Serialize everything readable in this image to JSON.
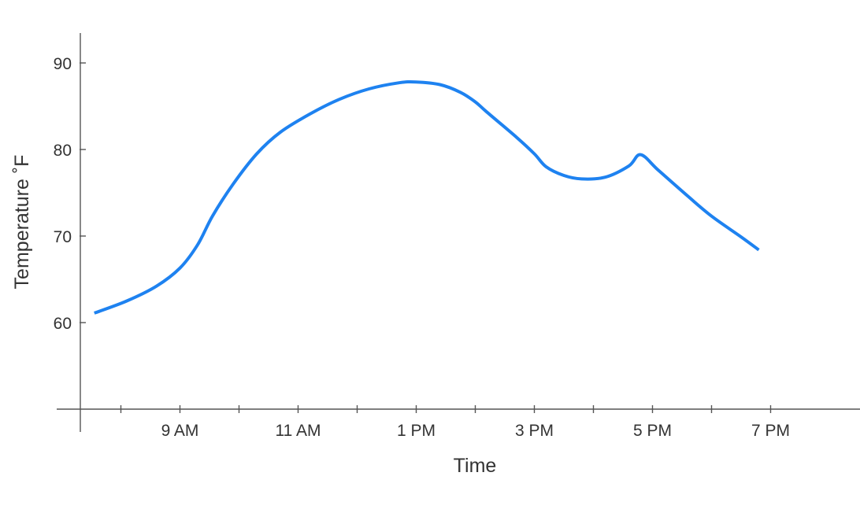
{
  "chart_data": {
    "type": "line",
    "title": "",
    "xlabel": "Time",
    "ylabel": "Temperature ˚F",
    "x_unit": "hour of day (24h)",
    "xlim": [
      6.65,
      19.6
    ],
    "ylim": [
      50,
      93.5
    ],
    "grid": false,
    "legend": "none",
    "x_ticks": [
      {
        "value": 9,
        "label": "9 AM"
      },
      {
        "value": 11,
        "label": "11 AM"
      },
      {
        "value": 13,
        "label": "1 PM"
      },
      {
        "value": 15,
        "label": "3 PM"
      },
      {
        "value": 17,
        "label": "5 PM"
      },
      {
        "value": 19,
        "label": "7 PM"
      }
    ],
    "x_minor_ticks": [
      8,
      10,
      12,
      14,
      16,
      18
    ],
    "y_ticks": [
      {
        "value": 60,
        "label": "60"
      },
      {
        "value": 70,
        "label": "70"
      },
      {
        "value": 80,
        "label": "80"
      },
      {
        "value": 90,
        "label": "90"
      }
    ],
    "series": [
      {
        "color": "#1e82f0",
        "points": [
          {
            "x": 7.55,
            "y": 61.1
          },
          {
            "x": 8.1,
            "y": 62.5
          },
          {
            "x": 8.6,
            "y": 64.2
          },
          {
            "x": 9.0,
            "y": 66.3
          },
          {
            "x": 9.3,
            "y": 69.0
          },
          {
            "x": 9.55,
            "y": 72.3
          },
          {
            "x": 9.9,
            "y": 76.0
          },
          {
            "x": 10.3,
            "y": 79.5
          },
          {
            "x": 10.7,
            "y": 82.0
          },
          {
            "x": 11.2,
            "y": 84.1
          },
          {
            "x": 11.7,
            "y": 85.8
          },
          {
            "x": 12.2,
            "y": 87.0
          },
          {
            "x": 12.7,
            "y": 87.7
          },
          {
            "x": 13.0,
            "y": 87.8
          },
          {
            "x": 13.4,
            "y": 87.5
          },
          {
            "x": 13.75,
            "y": 86.6
          },
          {
            "x": 14.0,
            "y": 85.5
          },
          {
            "x": 14.2,
            "y": 84.3
          },
          {
            "x": 14.7,
            "y": 81.4
          },
          {
            "x": 15.0,
            "y": 79.5
          },
          {
            "x": 15.2,
            "y": 78.0
          },
          {
            "x": 15.5,
            "y": 77.0
          },
          {
            "x": 15.8,
            "y": 76.6
          },
          {
            "x": 16.2,
            "y": 76.8
          },
          {
            "x": 16.6,
            "y": 78.1
          },
          {
            "x": 16.8,
            "y": 79.4
          },
          {
            "x": 17.1,
            "y": 77.6
          },
          {
            "x": 17.6,
            "y": 74.6
          },
          {
            "x": 18.0,
            "y": 72.3
          },
          {
            "x": 18.5,
            "y": 69.9
          },
          {
            "x": 18.8,
            "y": 68.4
          }
        ]
      }
    ]
  }
}
